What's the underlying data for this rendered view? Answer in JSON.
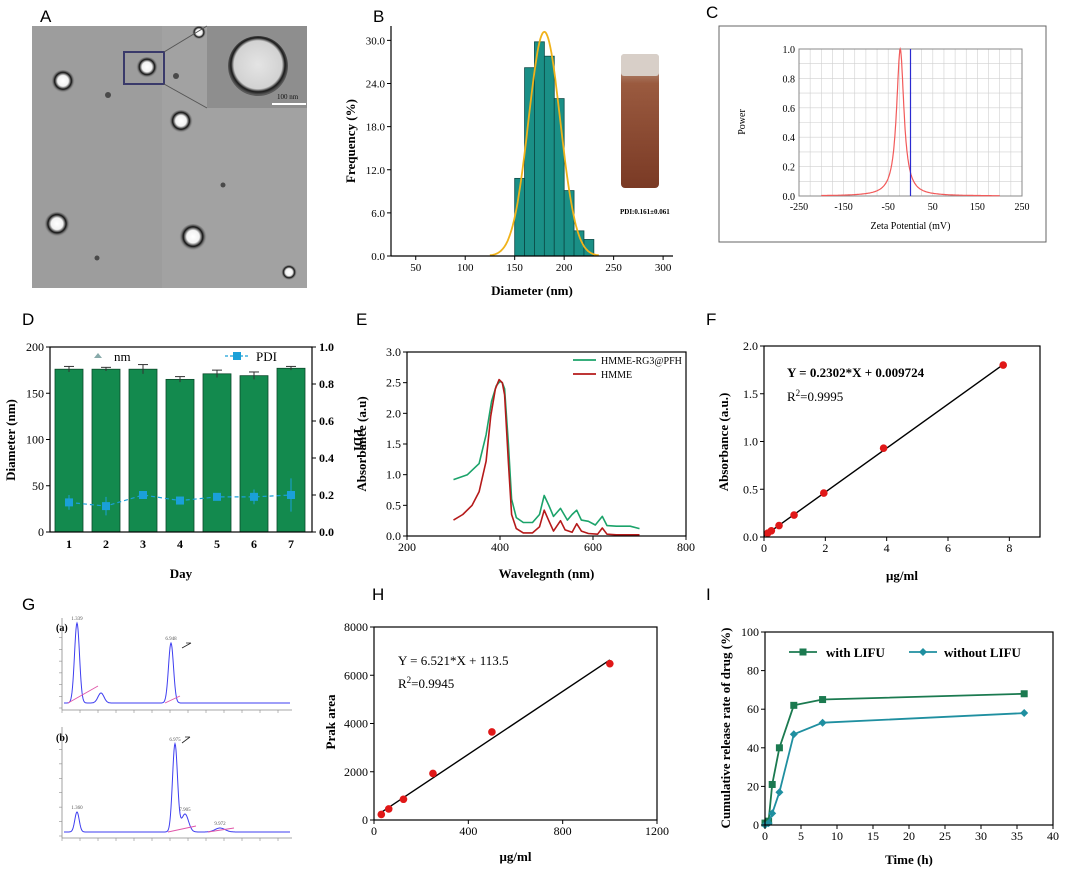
{
  "colors": {
    "teal_bar": "#1a8f86",
    "orange": "#f0b21a",
    "zeta_line": "#f25a5a",
    "zeta_ref": "#2b2bd1",
    "bar_green": "#138a4e",
    "pdi_blue": "#1aa0d8",
    "hmme_green": "#1ba36a",
    "hmme_red": "#b51a1a",
    "red_dot": "#e01818",
    "release_green": "#1b7a50",
    "release_teal": "#1f8fa0",
    "hplc_blue": "#3e3ef0",
    "hplc_pink": "#e055a8"
  },
  "panel_labels": {
    "A": "A",
    "B": "B",
    "C": "C",
    "D": "D",
    "E": "E",
    "F": "F",
    "G": "G",
    "H": "H",
    "I": "I"
  },
  "panel_a": {
    "scale_label": "100 nm"
  },
  "panel_g": {
    "sub_a": "(a)",
    "sub_b": "(b)"
  },
  "chart_data": [
    {
      "id": "B",
      "type": "bar",
      "title": "",
      "xlabel": "Diameter (nm)",
      "ylabel": "Frequency (%)",
      "xlim": [
        25,
        310
      ],
      "ylim": [
        0,
        32
      ],
      "xticks": [
        50,
        100,
        150,
        200,
        250,
        300
      ],
      "yticks": [
        0.0,
        6.0,
        12.0,
        18.0,
        24.0,
        30.0
      ],
      "ytick_labels": [
        "0.0",
        "6.0",
        "12.0",
        "18.0",
        "24.0",
        "30.0"
      ],
      "bin_width": 10,
      "categories": [
        155,
        165,
        175,
        185,
        195,
        205,
        215,
        225
      ],
      "values": [
        10.8,
        26.2,
        29.8,
        27.8,
        21.9,
        9.1,
        3.5,
        2.3
      ],
      "fit_curve": {
        "type": "gaussian",
        "mean": 180,
        "sd": 16,
        "amplitude": 31.2
      },
      "annotation": "PDI:0.161±0.061"
    },
    {
      "id": "C",
      "type": "line",
      "xlabel": "Zeta Potential (mV)",
      "ylabel": "Power",
      "xlim": [
        -250,
        250
      ],
      "ylim": [
        0,
        1.0
      ],
      "xticks": [
        -250,
        -150,
        -50,
        50,
        150,
        250
      ],
      "yticks": [
        0.0,
        0.2,
        0.4,
        0.6,
        0.8,
        1.0
      ],
      "ytick_labels": [
        "0.0",
        "0.2",
        "0.4",
        "0.6",
        "0.8",
        "1.0"
      ],
      "peak": {
        "center": -23,
        "width": 10
      },
      "reference_x": 0
    },
    {
      "id": "D",
      "type": "bar",
      "xlabel": "Day",
      "ylabel": "Diameter (nm)",
      "ylabel_right": "PDI",
      "categories": [
        "1",
        "2",
        "3",
        "4",
        "5",
        "6",
        "7"
      ],
      "ylim": [
        0,
        200
      ],
      "yticks": [
        0,
        50,
        100,
        150,
        200
      ],
      "ylim_right": [
        0,
        1.0
      ],
      "yticks_right": [
        0.0,
        0.2,
        0.4,
        0.6,
        0.8,
        1.0
      ],
      "ytick_labels_right": [
        "0.0",
        "0.2",
        "0.4",
        "0.6",
        "0.8",
        "1.0"
      ],
      "legend": [
        "nm",
        "PDI"
      ],
      "series": [
        {
          "name": "nm",
          "values": [
            176,
            176,
            176,
            165,
            171,
            169,
            177
          ],
          "errors": [
            3,
            2,
            5,
            3,
            4,
            4,
            2
          ]
        },
        {
          "name": "PDI",
          "values": [
            0.16,
            0.14,
            0.2,
            0.17,
            0.19,
            0.19,
            0.2
          ],
          "errors": [
            0.04,
            0.05,
            0.02,
            0.02,
            0.02,
            0.04,
            0.09
          ]
        }
      ]
    },
    {
      "id": "E",
      "type": "line",
      "xlabel": "Wavelegnth (nm)",
      "ylabel": "Absorbance (a.u)",
      "xlim": [
        200,
        800
      ],
      "ylim": [
        0,
        3.0
      ],
      "xticks": [
        200,
        400,
        600,
        800
      ],
      "yticks": [
        0.0,
        0.5,
        1.0,
        1.5,
        2.0,
        2.5,
        3.0
      ],
      "ytick_labels": [
        "0.0",
        "0.5",
        "1.0",
        "1.5",
        "2.0",
        "2.5",
        "3.0"
      ],
      "legend": [
        "HMME-RG3@PFH",
        "HMME"
      ],
      "series": [
        {
          "name": "HMME-RG3@PFH",
          "x": [
            300,
            330,
            355,
            370,
            382,
            392,
            400,
            405,
            410,
            418,
            425,
            435,
            450,
            470,
            485,
            495,
            505,
            515,
            530,
            545,
            555,
            565,
            575,
            590,
            605,
            620,
            630,
            650,
            680,
            700
          ],
          "y": [
            0.92,
            1.0,
            1.18,
            1.65,
            2.2,
            2.45,
            2.52,
            2.5,
            2.4,
            1.5,
            0.6,
            0.3,
            0.22,
            0.22,
            0.35,
            0.66,
            0.5,
            0.32,
            0.45,
            0.26,
            0.35,
            0.42,
            0.26,
            0.24,
            0.18,
            0.32,
            0.17,
            0.16,
            0.16,
            0.12
          ]
        },
        {
          "name": "HMME",
          "x": [
            300,
            320,
            340,
            355,
            370,
            380,
            390,
            398,
            405,
            410,
            418,
            425,
            435,
            450,
            470,
            485,
            495,
            505,
            515,
            530,
            540,
            555,
            565,
            575,
            590,
            610,
            620,
            630,
            650,
            680,
            700
          ],
          "y": [
            0.26,
            0.35,
            0.5,
            0.72,
            1.22,
            1.95,
            2.4,
            2.55,
            2.5,
            2.3,
            1.2,
            0.35,
            0.12,
            0.05,
            0.05,
            0.15,
            0.42,
            0.25,
            0.08,
            0.25,
            0.1,
            0.06,
            0.2,
            0.08,
            0.04,
            0.03,
            0.13,
            0.03,
            0.02,
            0.02,
            0.02
          ]
        }
      ]
    },
    {
      "id": "F",
      "type": "scatter",
      "xlabel": "μg/ml",
      "ylabel": "Absorbance (a.u.)",
      "xlim": [
        0,
        9
      ],
      "ylim": [
        0,
        2.0
      ],
      "xticks": [
        0,
        2,
        4,
        6,
        8
      ],
      "yticks": [
        0.0,
        0.5,
        1.0,
        1.5,
        2.0
      ],
      "ytick_labels": [
        "0.0",
        "0.5",
        "1.0",
        "1.5",
        "2.0"
      ],
      "x": [
        0.12,
        0.24,
        0.49,
        0.98,
        1.95,
        3.9,
        7.8
      ],
      "y": [
        0.04,
        0.065,
        0.12,
        0.23,
        0.46,
        0.93,
        1.8
      ],
      "fit": {
        "slope": 0.2302,
        "intercept": 0.009724
      },
      "equation": "Y = 0.2302*X + 0.009724",
      "r2_label": "R",
      "r2_exp": "2",
      "r2_value": "=0.9995"
    },
    {
      "id": "G",
      "type": "line",
      "description_free": true,
      "series": [
        {
          "name": "(a)",
          "peak_labels": [
            "1.339",
            "6.948"
          ]
        },
        {
          "name": "(b)",
          "peak_labels": [
            "1.360",
            "6.975",
            "7.905",
            "9.972"
          ]
        }
      ]
    },
    {
      "id": "H",
      "type": "scatter",
      "xlabel": "μg/ml",
      "ylabel": "Prak area",
      "xlim": [
        0,
        1200
      ],
      "ylim": [
        0,
        8000
      ],
      "xticks": [
        0,
        400,
        800,
        1200
      ],
      "yticks": [
        0,
        2000,
        4000,
        6000,
        8000
      ],
      "x": [
        31,
        62.5,
        125,
        250,
        500,
        1000
      ],
      "y": [
        230,
        460,
        860,
        1930,
        3650,
        6480
      ],
      "fit": {
        "slope": 6.521,
        "intercept": 113.5
      },
      "equation": "Y = 6.521*X + 113.5",
      "r2_label": "R",
      "r2_exp": "2",
      "r2_value": "=0.9945"
    },
    {
      "id": "I",
      "type": "line",
      "xlabel": "Time (h)",
      "ylabel": "Cumulative release rate of drug (%)",
      "xlim": [
        0,
        40
      ],
      "ylim": [
        0,
        100
      ],
      "xticks": [
        0,
        5,
        10,
        15,
        20,
        25,
        30,
        35,
        40
      ],
      "yticks": [
        0,
        20,
        40,
        60,
        80,
        100
      ],
      "legend": [
        "with LIFU",
        "without LIFU"
      ],
      "series": [
        {
          "name": "with LIFU",
          "x": [
            0,
            0.5,
            1,
            2,
            4,
            8,
            36
          ],
          "y": [
            1,
            2,
            21,
            40,
            62,
            65,
            68
          ]
        },
        {
          "name": "without LIFU",
          "x": [
            0,
            0.5,
            1,
            2,
            4,
            8,
            36
          ],
          "y": [
            0,
            1,
            6,
            17,
            47,
            53,
            58
          ]
        }
      ]
    }
  ]
}
